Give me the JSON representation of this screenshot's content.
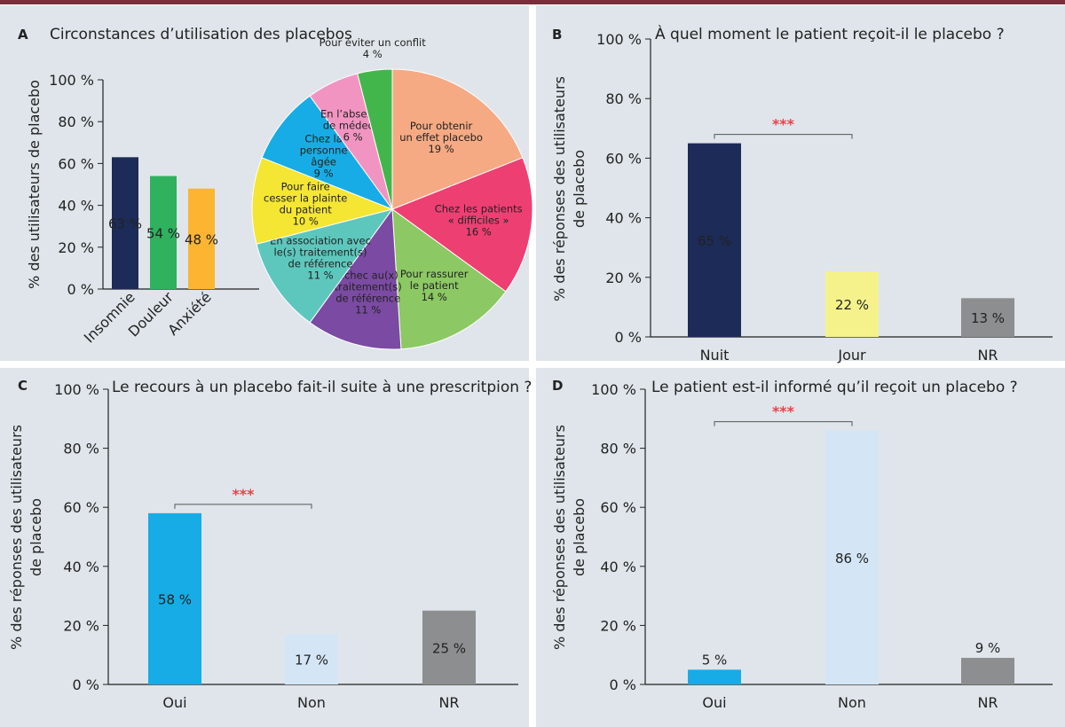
{
  "chart_data": [
    {
      "panel": "A",
      "type": "bar",
      "title": "Circonstances d’utilisation des placebos",
      "ylabel": "% des utilisateurs de placebo",
      "categories": [
        "Insomnie",
        "Douleur",
        "Anxiété"
      ],
      "values": [
        63,
        54,
        48
      ],
      "value_labels": [
        "63 %",
        "54 %",
        "48 %"
      ],
      "colors": [
        "#1d2b58",
        "#2fb15e",
        "#fbb531"
      ],
      "ylim": [
        0,
        100
      ],
      "yticks": [
        "0 %",
        "20 %",
        "40 %",
        "60 %",
        "80 %",
        "100 %"
      ]
    },
    {
      "panel": "A",
      "type": "pie",
      "slices": [
        {
          "lines": [
            "Pour obtenir",
            "un effet placebo",
            "19 %"
          ],
          "value": 19,
          "color": "#f6aa83"
        },
        {
          "lines": [
            "Chez les patients",
            "« difficiles »",
            "16 %"
          ],
          "value": 16,
          "color": "#ee3f73"
        },
        {
          "lines": [
            "Pour rassurer",
            "le patient",
            "14 %"
          ],
          "value": 14,
          "color": "#8cc863"
        },
        {
          "lines": [
            "Échec au(x)",
            "traitement(s)",
            "de référence",
            "11 %"
          ],
          "value": 11,
          "color": "#7b4aa3"
        },
        {
          "lines": [
            "En association avec",
            "le(s) traitement(s)",
            "de référence",
            "11 %"
          ],
          "value": 11,
          "color": "#5ec7bd"
        },
        {
          "lines": [
            "Pour faire",
            "cesser la plainte",
            "du patient",
            "10 %"
          ],
          "value": 10,
          "color": "#f4e632"
        },
        {
          "lines": [
            "Chez la",
            "personne",
            "âgée",
            "9 %"
          ],
          "value": 9,
          "color": "#17ace5"
        },
        {
          "lines": [
            "En l’absence",
            "de médecin",
            "6 %"
          ],
          "value": 6,
          "color": "#f294c1"
        },
        {
          "lines": [
            "Pour éviter un conflit",
            "4 %"
          ],
          "value": 4,
          "color": "#43b64b"
        }
      ]
    },
    {
      "panel": "B",
      "type": "bar",
      "title": "À quel moment le patient reçoit-il le placebo ?",
      "ylabel": "% des réponses des utilisateurs de placebo",
      "categories": [
        "Nuit",
        "Jour",
        "NR"
      ],
      "values": [
        65,
        22,
        13
      ],
      "value_labels": [
        "65 %",
        "22 %",
        "13 %"
      ],
      "colors": [
        "#1d2b58",
        "#f5f28c",
        "#8d8e90"
      ],
      "ylim": [
        0,
        100
      ],
      "yticks": [
        "0 %",
        "20 %",
        "40 %",
        "60 %",
        "80 %",
        "100 %"
      ],
      "significance": "***"
    },
    {
      "panel": "C",
      "type": "bar",
      "title": "Le recours à un placebo fait-il suite à une prescritpion ?",
      "ylabel": "% des réponses des utilisateurs de placebo",
      "categories": [
        "Oui",
        "Non",
        "NR"
      ],
      "values": [
        58,
        17,
        25
      ],
      "value_labels": [
        "58 %",
        "17 %",
        "25 %"
      ],
      "colors": [
        "#17ace5",
        "#d4e6f6",
        "#8d8e90"
      ],
      "ylim": [
        0,
        100
      ],
      "yticks": [
        "0 %",
        "20 %",
        "40 %",
        "60 %",
        "80 %",
        "100 %"
      ],
      "significance": "***"
    },
    {
      "panel": "D",
      "type": "bar",
      "title": "Le patient est-il informé qu’il reçoit un placebo ?",
      "ylabel": "% des réponses des utilisateurs de placebo",
      "categories": [
        "Oui",
        "Non",
        "NR"
      ],
      "values": [
        5,
        86,
        9
      ],
      "value_labels": [
        "5 %",
        "86 %",
        "9 %"
      ],
      "colors": [
        "#17ace5",
        "#d4e6f6",
        "#8d8e90"
      ],
      "ylim": [
        0,
        100
      ],
      "yticks": [
        "0 %",
        "20 %",
        "40 %",
        "60 %",
        "80 %",
        "100 %"
      ],
      "significance": "***"
    }
  ]
}
